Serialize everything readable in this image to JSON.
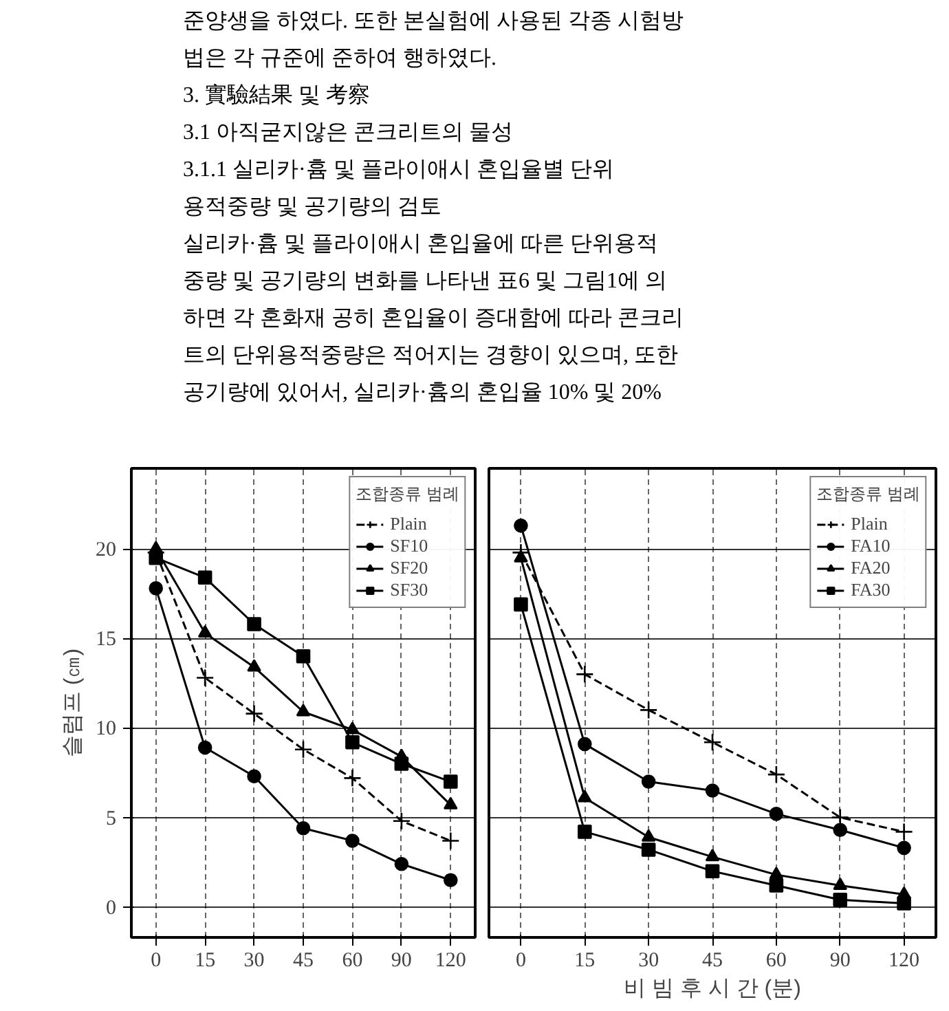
{
  "chart_data": [
    {
      "type": "other",
      "annotations": [
        "준양생을 하였다. 또한 본실험에 사용된 각종 시험방",
        "법은 각 규준에 준하여 행하였다.",
        "3. 實驗結果 및 考察",
        "3.1 아직굳지않은 콘크리트의 물성",
        "3.1.1 실리카·흄 및 플라이애시 혼입율별 단위",
        "용적중량 및 공기량의 검토",
        "실리카·흄 및 플라이애시 혼입율에 따른 단위용적",
        "중량 및 공기량의 변화를 나타낸 표6 및 그림1에 의",
        "하면 각 혼화재 공히 혼입율이 증대함에 따라 콘크리",
        "트의 단위용적중량은 적어지는 경향이 있으며, 또한",
        "공기량에 있어서, 실리카·흄의 혼입율 10% 및 20%"
      ]
    },
    {
      "type": "line",
      "ylabel": "슬럼프 (㎝)",
      "legend_title": "조합종류 범례",
      "legend": "top right",
      "grid": true,
      "categories": [
        "0",
        "15",
        "30",
        "45",
        "60",
        "90",
        "120"
      ],
      "ylim": [
        -1.7,
        24.5
      ],
      "yticks": [
        0,
        5,
        10,
        15,
        20
      ],
      "series": [
        {
          "name": "Plain",
          "color": "#000000",
          "marker": "cross",
          "line_style": "dashed",
          "values": [
            19.8,
            12.8,
            10.8,
            8.8,
            7.2,
            4.8,
            3.7
          ]
        },
        {
          "name": "SF10",
          "color": "#000000",
          "marker": "circle",
          "line_style": "solid",
          "values": [
            17.8,
            8.9,
            7.3,
            4.4,
            3.7,
            2.4,
            1.5
          ]
        },
        {
          "name": "SF20",
          "color": "#000000",
          "marker": "triangle",
          "line_style": "solid",
          "values": [
            20,
            15.3,
            13.4,
            10.9,
            9.9,
            8.4,
            5.7
          ]
        },
        {
          "name": "SF30",
          "color": "#000000",
          "marker": "square",
          "line_style": "solid",
          "values": [
            19.5,
            18.4,
            15.8,
            14.0,
            9.2,
            8.0,
            7.0
          ]
        }
      ]
    },
    {
      "type": "line",
      "xlabel": "비 빔 후 시 간 (분)",
      "legend_title": "조합종류 범례",
      "legend": "top right",
      "grid": true,
      "tick_labels": "x",
      "categories": [
        "0",
        "15",
        "30",
        "45",
        "60",
        "90",
        "120"
      ],
      "ylim": [
        -1.7,
        24.5
      ],
      "yticks": [
        0,
        5,
        10,
        15,
        20
      ],
      "series": [
        {
          "name": "Plain",
          "color": "#000000",
          "marker": "cross",
          "line_style": "dashed",
          "values": [
            19.8,
            13.0,
            11.0,
            9.2,
            7.4,
            5.0,
            4.2
          ]
        },
        {
          "name": "FA10",
          "color": "#000000",
          "marker": "circle",
          "line_style": "solid",
          "values": [
            21.3,
            9.1,
            7.0,
            6.5,
            5.2,
            4.3,
            3.3
          ]
        },
        {
          "name": "FA20",
          "color": "#000000",
          "marker": "triangle",
          "line_style": "solid",
          "values": [
            19.5,
            6.1,
            3.9,
            2.8,
            1.8,
            1.2,
            0.7
          ]
        },
        {
          "name": "FA30",
          "color": "#000000",
          "marker": "square",
          "line_style": "solid",
          "values": [
            16.9,
            4.2,
            3.2,
            2.0,
            1.2,
            0.4,
            0.2
          ]
        }
      ]
    }
  ]
}
